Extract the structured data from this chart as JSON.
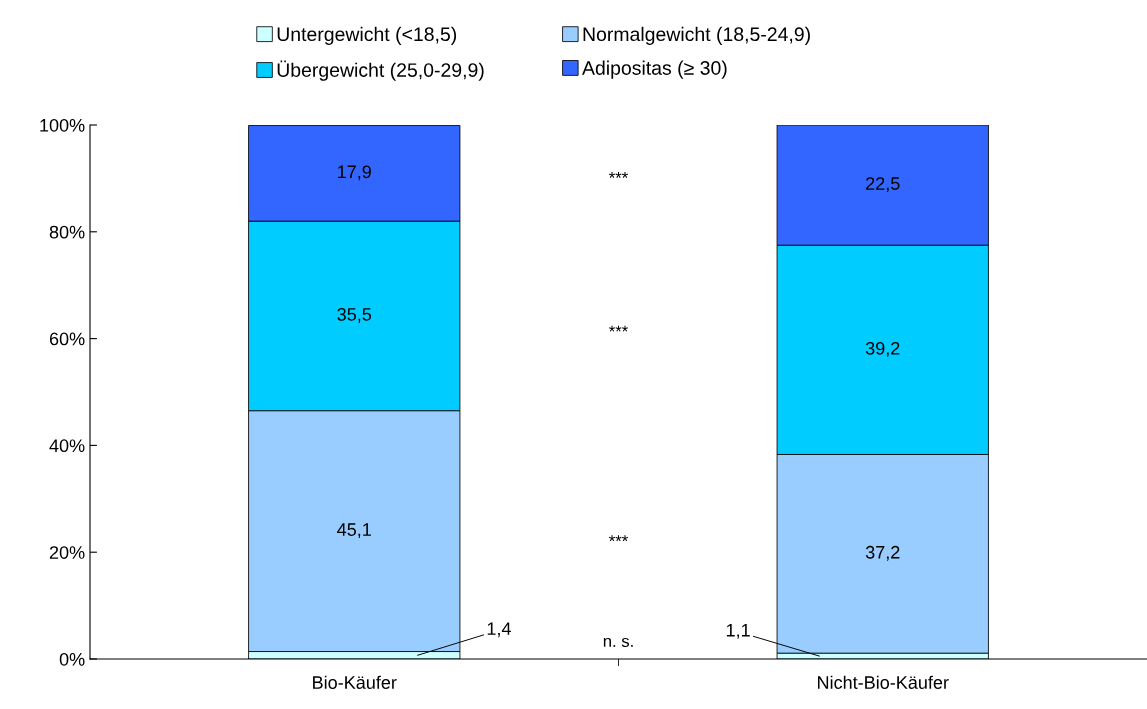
{
  "chart_data": {
    "type": "bar",
    "stacked": true,
    "categories": [
      "Bio-Käufer",
      "Nicht-Bio-Käufer"
    ],
    "series": [
      {
        "name": "Untergewicht (<18,5)",
        "color": "#ccffff",
        "values": [
          1.4,
          1.1
        ],
        "value_labels": [
          "1,4",
          "1,1"
        ]
      },
      {
        "name": "Normalgewicht (18,5-24,9)",
        "color": "#99ccff",
        "values": [
          45.1,
          37.2
        ],
        "value_labels": [
          "45,1",
          "37,2"
        ]
      },
      {
        "name": "Übergewicht (25,0-29,9)",
        "color": "#00ccff",
        "values": [
          35.5,
          39.2
        ],
        "value_labels": [
          "35,5",
          "39,2"
        ]
      },
      {
        "name": "Adipositas (≥ 30)",
        "color": "#3366ff",
        "values": [
          17.9,
          22.5
        ],
        "value_labels": [
          "17,9",
          "22,5"
        ]
      }
    ],
    "ylim": [
      0,
      100
    ],
    "yticks": [
      {
        "value": 0,
        "label": "0%"
      },
      {
        "value": 20,
        "label": "20%"
      },
      {
        "value": 40,
        "label": "40%"
      },
      {
        "value": 60,
        "label": "60%"
      },
      {
        "value": 80,
        "label": "80%"
      },
      {
        "value": 100,
        "label": "100%"
      }
    ],
    "annotations": [
      "***",
      "***",
      "***",
      "n. s."
    ],
    "legend": "top",
    "grid": false
  }
}
